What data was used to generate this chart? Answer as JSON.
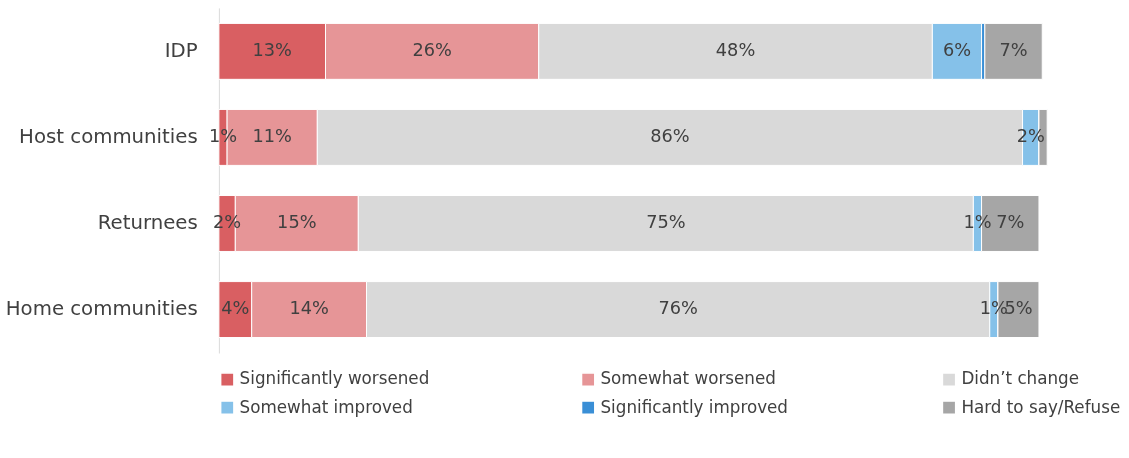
{
  "chart_data": {
    "type": "bar",
    "orientation": "horizontal",
    "stacked": true,
    "legend": "bottom",
    "grid": false,
    "categories": [
      "IDP",
      "Host communities",
      "Returnees",
      "Home communities"
    ],
    "xlim": [
      0,
      101
    ],
    "series": [
      {
        "name": "Significantly worsened",
        "color": "#d95f62",
        "values": [
          13,
          1,
          2,
          4
        ],
        "value_labels": [
          "13%",
          "1%",
          "2%",
          "4%"
        ]
      },
      {
        "name": "Somewhat worsened",
        "color": "#e69597",
        "values": [
          26,
          11,
          15,
          14
        ],
        "value_labels": [
          "26%",
          "11%",
          "15%",
          "14%"
        ]
      },
      {
        "name": "Didn’t change",
        "color": "#d9d9d9",
        "values": [
          48,
          86,
          75,
          76
        ],
        "value_labels": [
          "48%",
          "86%",
          "75%",
          "76%"
        ]
      },
      {
        "name": "Somewhat improved",
        "color": "#85c1e9",
        "values": [
          6,
          2,
          1,
          1
        ],
        "value_labels": [
          "6%",
          "2%",
          "1%",
          "1%"
        ]
      },
      {
        "name": "Significantly improved",
        "color": "#3a8fd6",
        "values": [
          0.4,
          0,
          0,
          0
        ],
        "value_labels": [
          null,
          null,
          null,
          null
        ]
      },
      {
        "name": "Hard to say/Refuse",
        "color": "#a6a6a6",
        "values": [
          7,
          1,
          7,
          5
        ],
        "value_labels": [
          "7%",
          null,
          "7%",
          "5%"
        ]
      }
    ]
  }
}
